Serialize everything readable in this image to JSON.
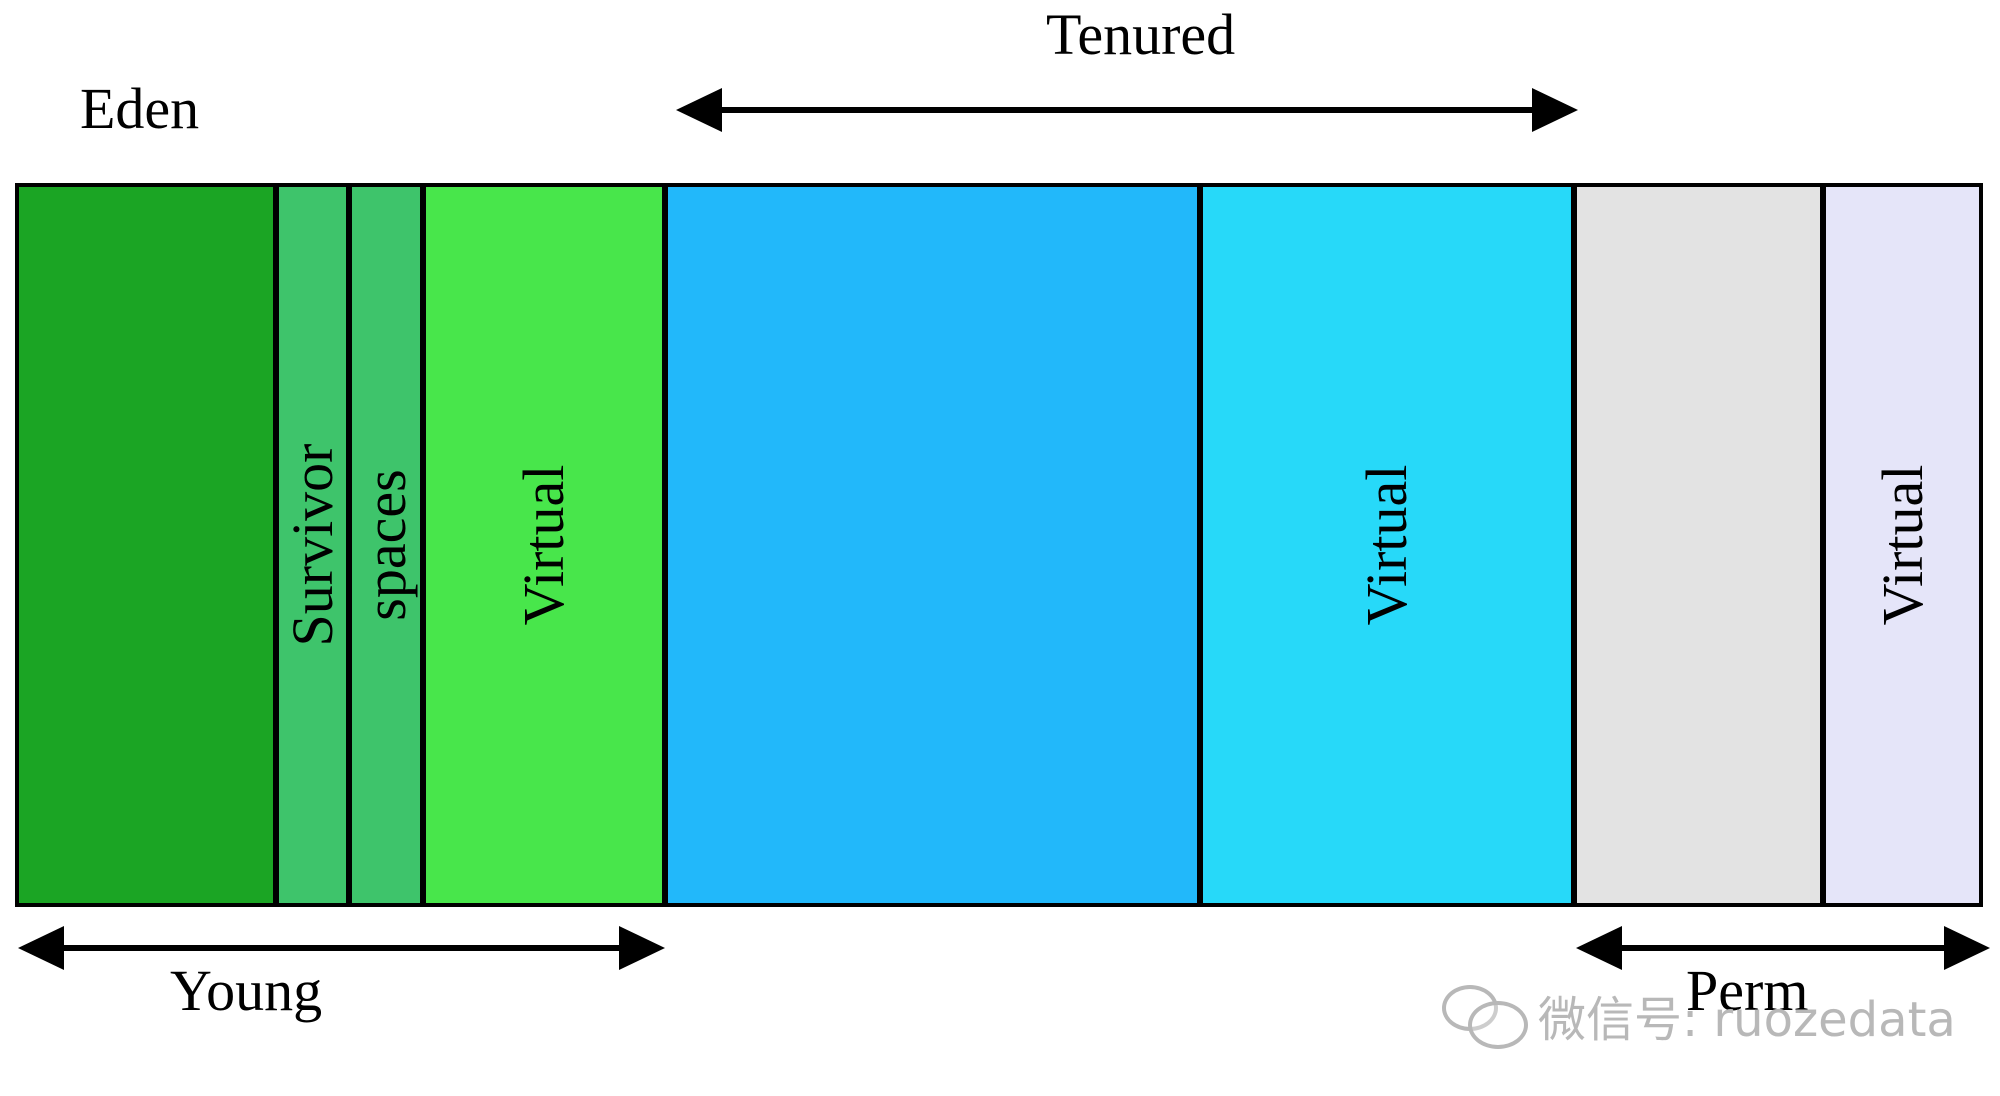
{
  "labels": {
    "eden": "Eden",
    "tenured": "Tenured",
    "young": "Young",
    "perm": "Perm"
  },
  "segments": {
    "survivor": "Survivor",
    "spaces": "spaces",
    "virtual_young": "Virtual",
    "virtual_tenured": "Virtual",
    "virtual_perm": "Virtual"
  },
  "colors": {
    "eden": "#1ba524",
    "survivor": "#3ec46b",
    "virtual_young": "#48e64b",
    "tenured": "#22b8fa",
    "virtual_tenured": "#27d9f9",
    "perm": "#e3e3e3",
    "virtual_perm": "#e5e5f9"
  },
  "watermark": {
    "text": "微信号: ruozedata",
    "icon": "wechat-icon"
  }
}
